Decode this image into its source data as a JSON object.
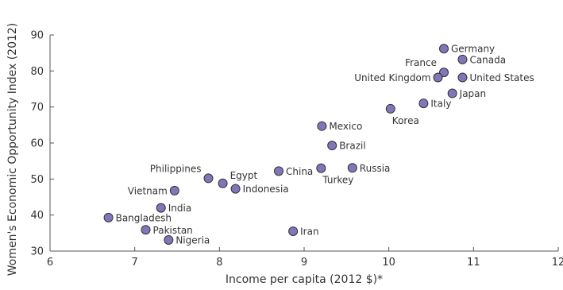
{
  "chart_data": {
    "type": "scatter",
    "title": "",
    "xlabel": "Income per capita (2012 $)*",
    "ylabel": "Women's Economic Opportunity Index (2012)",
    "xlim": [
      6,
      12
    ],
    "ylim": [
      30,
      90
    ],
    "xticks": [
      6,
      7,
      8,
      9,
      10,
      11,
      12
    ],
    "yticks": [
      30,
      40,
      50,
      60,
      70,
      80,
      90
    ],
    "grid": false,
    "marker_color": "#7f77b8",
    "marker_edge_color": "#333333",
    "points": [
      {
        "label": "Germany",
        "x": 10.65,
        "y": 86.2,
        "label_pos": "right"
      },
      {
        "label": "France",
        "x": 10.65,
        "y": 79.6,
        "label_pos": "above-left"
      },
      {
        "label": "Canada",
        "x": 10.87,
        "y": 83.2,
        "label_pos": "right"
      },
      {
        "label": "United Kingdom",
        "x": 10.58,
        "y": 78.2,
        "label_pos": "left"
      },
      {
        "label": "United States",
        "x": 10.87,
        "y": 78.2,
        "label_pos": "right"
      },
      {
        "label": "Japan",
        "x": 10.75,
        "y": 73.8,
        "label_pos": "right"
      },
      {
        "label": "Italy",
        "x": 10.41,
        "y": 71.0,
        "label_pos": "right"
      },
      {
        "label": "Korea",
        "x": 10.02,
        "y": 69.5,
        "label_pos": "below-right"
      },
      {
        "label": "Mexico",
        "x": 9.21,
        "y": 64.7,
        "label_pos": "right"
      },
      {
        "label": "Brazil",
        "x": 9.33,
        "y": 59.3,
        "label_pos": "right"
      },
      {
        "label": "Russia",
        "x": 9.57,
        "y": 53.1,
        "label_pos": "right"
      },
      {
        "label": "Turkey",
        "x": 9.2,
        "y": 53.0,
        "label_pos": "below-right"
      },
      {
        "label": "China",
        "x": 8.7,
        "y": 52.2,
        "label_pos": "right"
      },
      {
        "label": "Philippines",
        "x": 7.87,
        "y": 50.2,
        "label_pos": "above-left"
      },
      {
        "label": "Egypt",
        "x": 8.04,
        "y": 48.8,
        "label_pos": "above-right"
      },
      {
        "label": "Indonesia",
        "x": 8.19,
        "y": 47.3,
        "label_pos": "right"
      },
      {
        "label": "Vietnam",
        "x": 7.47,
        "y": 46.8,
        "label_pos": "left"
      },
      {
        "label": "India",
        "x": 7.31,
        "y": 42.0,
        "label_pos": "right"
      },
      {
        "label": "Bangladesh",
        "x": 6.69,
        "y": 39.3,
        "label_pos": "right"
      },
      {
        "label": "Pakistan",
        "x": 7.13,
        "y": 35.9,
        "label_pos": "right"
      },
      {
        "label": "Nigeria",
        "x": 7.4,
        "y": 33.1,
        "label_pos": "right"
      },
      {
        "label": "Iran",
        "x": 8.87,
        "y": 35.5,
        "label_pos": "right"
      }
    ]
  }
}
